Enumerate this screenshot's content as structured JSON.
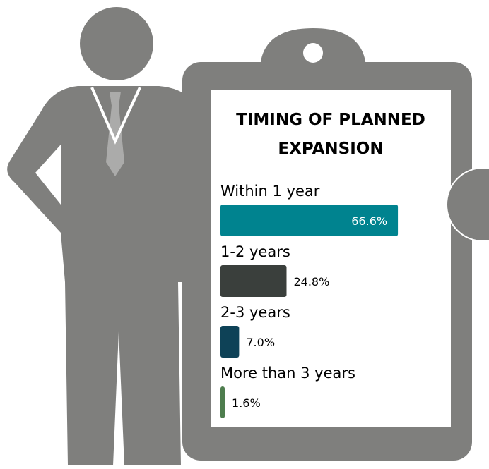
{
  "chart_data": {
    "type": "bar",
    "orientation": "horizontal",
    "title": "TIMING OF PLANNED EXPANSION",
    "categories": [
      "Within 1 year",
      "1-2 years",
      "2-3 years",
      "More than 3 years"
    ],
    "values": [
      66.6,
      24.8,
      7.0,
      1.6
    ],
    "value_labels": [
      "66.6%",
      "24.8%",
      "7.0%",
      "1.6%"
    ],
    "colors": [
      "#00838f",
      "#3a3f3c",
      "#0e4257",
      "#4e7d4e"
    ]
  }
}
